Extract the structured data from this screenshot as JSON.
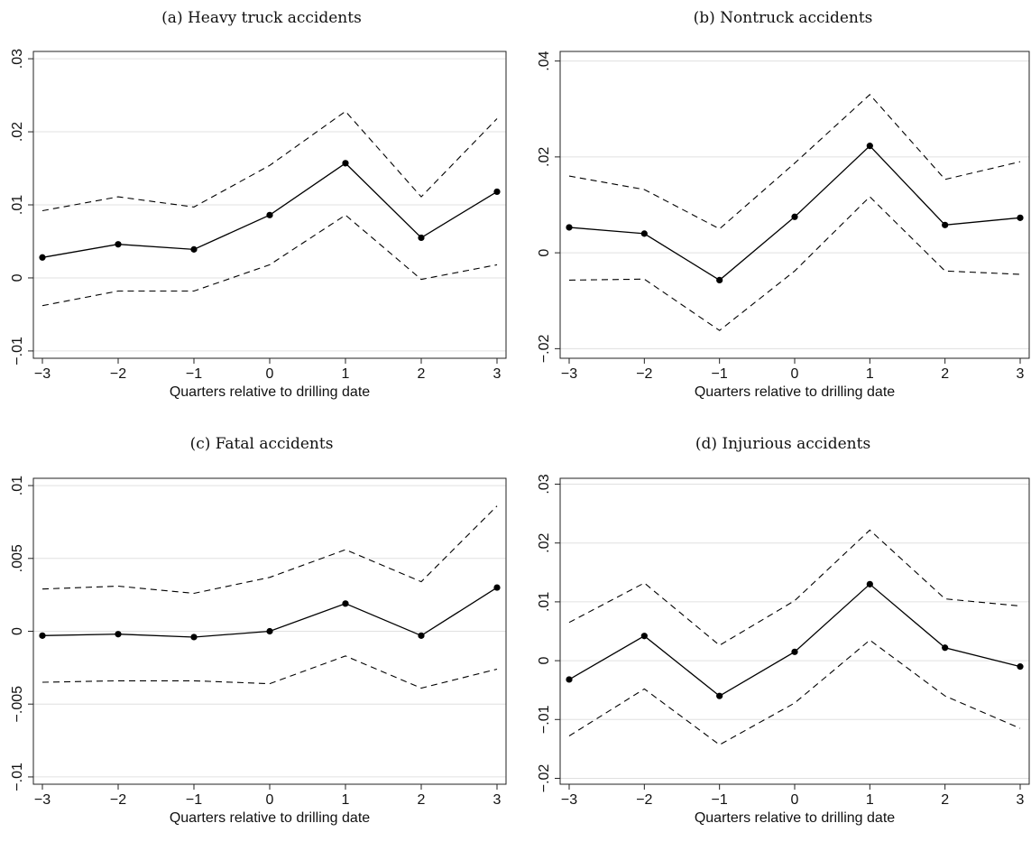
{
  "chart_data": [
    {
      "type": "line",
      "title": "(a) Heavy truck accidents",
      "xlabel": "Quarters relative to drilling date",
      "ylabel": "",
      "x": [
        -3,
        -2,
        -1,
        0,
        1,
        2,
        3
      ],
      "x_tick_labels": [
        "−3",
        "−2",
        "−1",
        "0",
        "1",
        "2",
        "3"
      ],
      "ylim": [
        -0.011,
        0.031
      ],
      "y_ticks": [
        -0.01,
        0,
        0.01,
        0.02,
        0.03
      ],
      "y_tick_labels": [
        "−.01",
        "0",
        ".01",
        ".02",
        ".03"
      ],
      "grid": true,
      "series": [
        {
          "style": "solid-with-markers",
          "values": [
            0.0028,
            0.0046,
            0.0039,
            0.0086,
            0.0157,
            0.0055,
            0.0118
          ]
        },
        {
          "style": "dashed",
          "values": [
            0.0092,
            0.0111,
            0.0097,
            0.0154,
            0.0228,
            0.0111,
            0.0218
          ]
        },
        {
          "style": "dashed",
          "values": [
            -0.0038,
            -0.0018,
            -0.0018,
            0.0018,
            0.0086,
            -0.0002,
            0.0018
          ]
        }
      ]
    },
    {
      "type": "line",
      "title": "(b) Nontruck accidents",
      "xlabel": "Quarters relative to drilling date",
      "ylabel": "",
      "x": [
        -3,
        -2,
        -1,
        0,
        1,
        2,
        3
      ],
      "x_tick_labels": [
        "−3",
        "−2",
        "−1",
        "0",
        "1",
        "2",
        "3"
      ],
      "ylim": [
        -0.022,
        0.042
      ],
      "y_ticks": [
        -0.02,
        0,
        0.02,
        0.04
      ],
      "y_tick_labels": [
        "−.02",
        "0",
        ".02",
        ".04"
      ],
      "grid": true,
      "series": [
        {
          "style": "solid-with-markers",
          "values": [
            0.0053,
            0.004,
            -0.0057,
            0.0075,
            0.0223,
            0.0058,
            0.0073
          ]
        },
        {
          "style": "dashed",
          "values": [
            0.016,
            0.0132,
            0.005,
            0.0187,
            0.033,
            0.0153,
            0.019
          ]
        },
        {
          "style": "dashed",
          "values": [
            -0.0057,
            -0.0055,
            -0.0162,
            -0.0038,
            0.0117,
            -0.0038,
            -0.0045
          ]
        }
      ]
    },
    {
      "type": "line",
      "title": "(c) Fatal accidents",
      "xlabel": "Quarters relative to drilling date",
      "ylabel": "",
      "x": [
        -3,
        -2,
        -1,
        0,
        1,
        2,
        3
      ],
      "x_tick_labels": [
        "−3",
        "−2",
        "−1",
        "0",
        "1",
        "2",
        "3"
      ],
      "ylim": [
        -0.0105,
        0.0105
      ],
      "y_ticks": [
        -0.01,
        -0.005,
        0,
        0.005,
        0.01
      ],
      "y_tick_labels": [
        "−.01",
        "−.005",
        "0",
        ".005",
        ".01"
      ],
      "grid": true,
      "series": [
        {
          "style": "solid-with-markers",
          "values": [
            -0.0003,
            -0.0002,
            -0.0004,
            0.0,
            0.0019,
            -0.0003,
            0.003
          ]
        },
        {
          "style": "dashed",
          "values": [
            0.0029,
            0.0031,
            0.0026,
            0.0037,
            0.0056,
            0.0034,
            0.0086
          ]
        },
        {
          "style": "dashed",
          "values": [
            -0.0035,
            -0.0034,
            -0.0034,
            -0.0036,
            -0.0017,
            -0.0039,
            -0.0026
          ]
        }
      ]
    },
    {
      "type": "line",
      "title": "(d) Injurious accidents",
      "xlabel": "Quarters relative to drilling date",
      "ylabel": "",
      "x": [
        -3,
        -2,
        -1,
        0,
        1,
        2,
        3
      ],
      "x_tick_labels": [
        "−3",
        "−2",
        "−1",
        "0",
        "1",
        "2",
        "3"
      ],
      "ylim": [
        -0.021,
        0.031
      ],
      "y_ticks": [
        -0.02,
        -0.01,
        0,
        0.01,
        0.02,
        0.03
      ],
      "y_tick_labels": [
        "−.02",
        "−.01",
        "0",
        ".01",
        ".02",
        ".03"
      ],
      "grid": true,
      "series": [
        {
          "style": "solid-with-markers",
          "values": [
            -0.0032,
            0.0042,
            -0.006,
            0.0015,
            0.013,
            0.0022,
            -0.001
          ]
        },
        {
          "style": "dashed",
          "values": [
            0.0065,
            0.0132,
            0.0026,
            0.0102,
            0.0222,
            0.0105,
            0.0093
          ]
        },
        {
          "style": "dashed",
          "values": [
            -0.0128,
            -0.0048,
            -0.0143,
            -0.0072,
            0.0035,
            -0.006,
            -0.0115
          ]
        }
      ]
    }
  ]
}
